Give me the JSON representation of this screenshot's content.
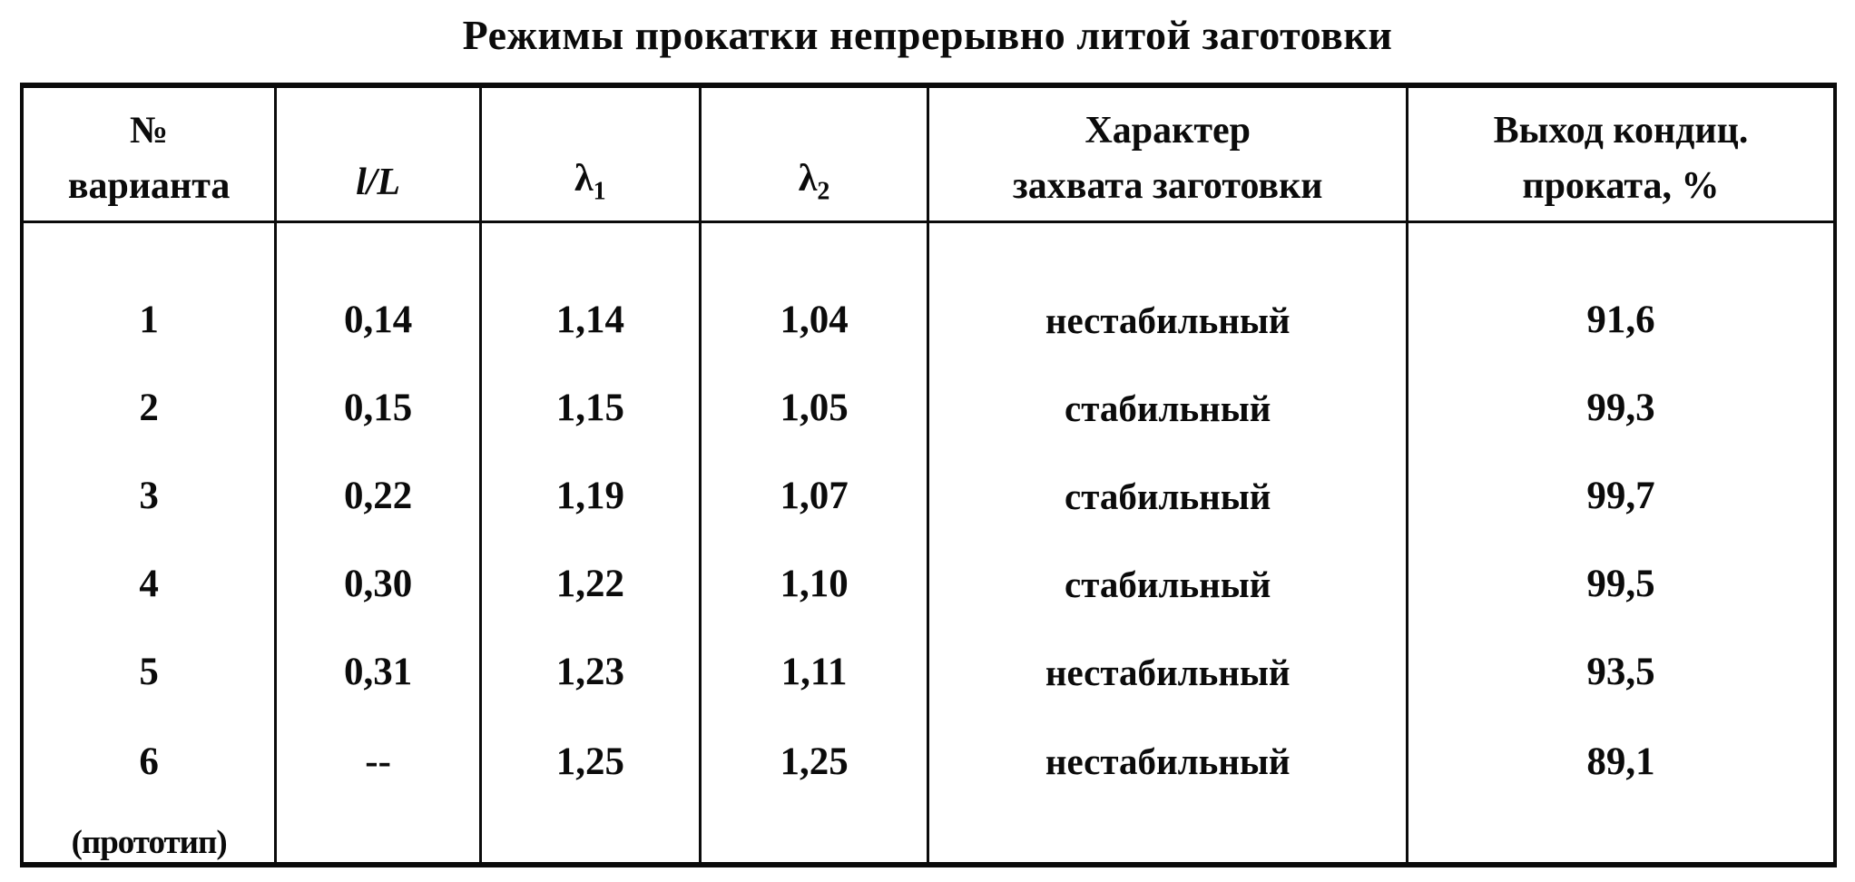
{
  "title": "Режимы прокатки непрерывно литой заготовки",
  "table": {
    "headers": {
      "variant": {
        "line1": "№",
        "line2": "варианта"
      },
      "lL": "l/L",
      "lambda1": {
        "symbol": "λ",
        "sub": "1"
      },
      "lambda2": {
        "symbol": "λ",
        "sub": "2"
      },
      "grip": {
        "line1": "Характер",
        "line2": "захвата заготовки"
      },
      "yield": {
        "line1": "Выход кондиц.",
        "line2": "проката, %"
      }
    },
    "rows": [
      {
        "variant": "1",
        "lL": "0,14",
        "lambda1": "1,14",
        "lambda2": "1,04",
        "grip": "нестабильный",
        "yield": "91,6"
      },
      {
        "variant": "2",
        "lL": "0,15",
        "lambda1": "1,15",
        "lambda2": "1,05",
        "grip": "стабильный",
        "yield": "99,3"
      },
      {
        "variant": "3",
        "lL": "0,22",
        "lambda1": "1,19",
        "lambda2": "1,07",
        "grip": "стабильный",
        "yield": "99,7"
      },
      {
        "variant": "4",
        "lL": "0,30",
        "lambda1": "1,22",
        "lambda2": "1,10",
        "grip": "стабильный",
        "yield": "99,5"
      },
      {
        "variant": "5",
        "lL": "0,31",
        "lambda1": "1,23",
        "lambda2": "1,11",
        "grip": "нестабильный",
        "yield": "93,5"
      },
      {
        "variant": "6",
        "variant_note": "(прототип)",
        "lL": "--",
        "lambda1": "1,25",
        "lambda2": "1,25",
        "grip": "нестабильный",
        "yield": "89,1"
      }
    ]
  }
}
